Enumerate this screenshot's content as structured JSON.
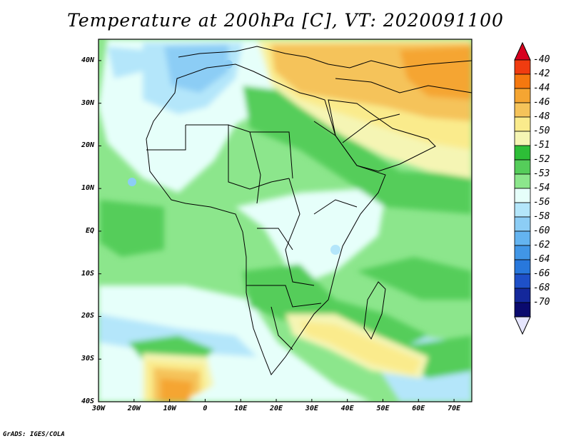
{
  "title": "Temperature at 200hPa [C], VT: 2020091100",
  "footer": "GrADS: IGES/COLA",
  "map": {
    "region": "Africa",
    "lon_range": [
      -30,
      75
    ],
    "lat_range": [
      -40,
      45
    ],
    "lat_labels": [
      "40N",
      "30N",
      "20N",
      "10N",
      "EQ",
      "10S",
      "20S",
      "30S",
      "40S"
    ],
    "lon_labels": [
      "30W",
      "20W",
      "10W",
      "0",
      "10E",
      "20E",
      "30E",
      "40E",
      "50E",
      "60E",
      "70E"
    ]
  },
  "colorbar": {
    "levels": [
      "-40",
      "-42",
      "-44",
      "-46",
      "-48",
      "-50",
      "-51",
      "-52",
      "-53",
      "-54",
      "-56",
      "-58",
      "-60",
      "-62",
      "-64",
      "-66",
      "-68",
      "-70"
    ],
    "colors": [
      "#d7001e",
      "#f03c10",
      "#f5780f",
      "#f5a532",
      "#f5c35a",
      "#faeb8c",
      "#f5f5b4",
      "#2dbe37",
      "#55cd5a",
      "#8ce68c",
      "#e6fffa",
      "#b4e6fa",
      "#8ccdf5",
      "#64b4f0",
      "#4196e6",
      "#2878dc",
      "#1e50c8",
      "#14289b",
      "#0a0a6e",
      "#e6e6ff"
    ]
  }
}
